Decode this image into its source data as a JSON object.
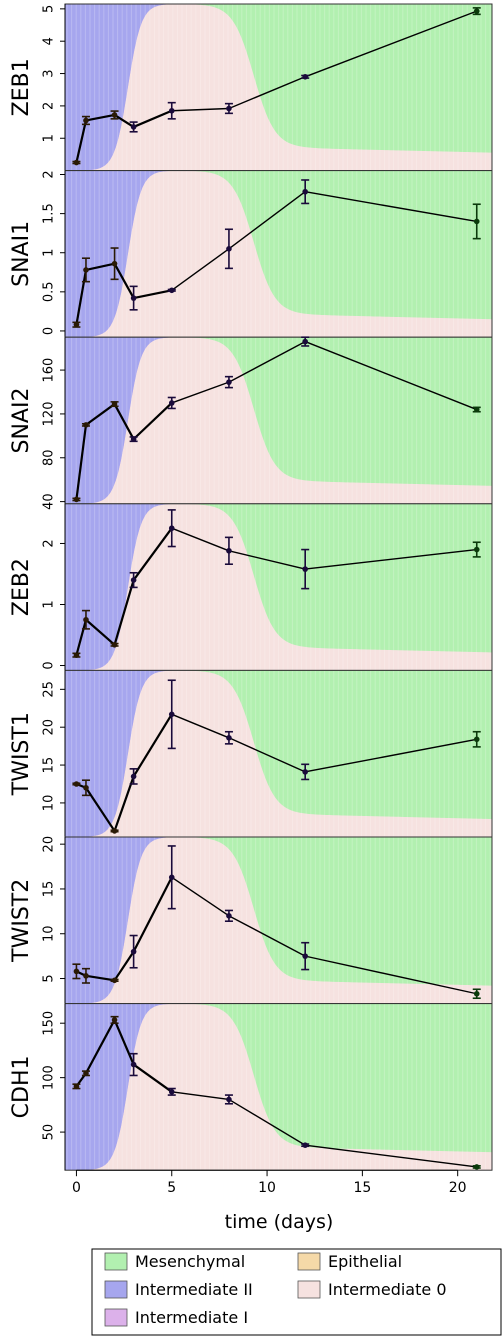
{
  "chart_data": {
    "type": "area",
    "xlabel": "time (days)",
    "xlim": [
      -0.6,
      21.8
    ],
    "xticks": [
      0,
      5,
      10,
      15,
      20
    ],
    "background": {
      "type": "stacked-area",
      "states": [
        {
          "name": "Epithelial",
          "color": "#F5D9A8"
        },
        {
          "name": "Intermediate 0",
          "color": "#F6E2E0"
        },
        {
          "name": "Intermediate I",
          "color": "#DCB1EA"
        },
        {
          "name": "Intermediate II",
          "color": "#A6A6EE"
        },
        {
          "name": "Mesenchymal",
          "color": "#B2F0B0"
        }
      ],
      "boundaries_x_at_half": [
        2.7,
        4.5,
        9.3
      ],
      "mesenchymal_start_fraction": 0.82,
      "mesenchymal_end_fraction": 0.86,
      "mesenchymal_plateau_start_x": 10.0
    },
    "panels": [
      {
        "name": "ZEB1",
        "ylim": [
          0,
          5.15
        ],
        "yticks": [
          1,
          2,
          3,
          4,
          5
        ],
        "x": [
          0,
          0.5,
          2,
          3,
          5,
          8,
          12,
          21
        ],
        "y": [
          0.25,
          1.55,
          1.72,
          1.35,
          1.85,
          1.92,
          2.9,
          4.93
        ],
        "err": [
          0.03,
          0.12,
          0.12,
          0.15,
          0.25,
          0.15,
          0.04,
          0.1
        ]
      },
      {
        "name": "SNAI1",
        "ylim": [
          -0.08,
          2.05
        ],
        "yticks": [
          0.0,
          0.5,
          1.0,
          1.5,
          2.0
        ],
        "x": [
          0,
          0.5,
          2,
          3,
          5,
          8,
          12,
          21
        ],
        "y": [
          0.08,
          0.78,
          0.86,
          0.42,
          0.52,
          1.05,
          1.78,
          1.4
        ],
        "err": [
          0.03,
          0.15,
          0.2,
          0.15,
          0.01,
          0.25,
          0.15,
          0.22
        ]
      },
      {
        "name": "SNAI2",
        "ylim": [
          38,
          190
        ],
        "yticks": [
          40,
          80,
          120,
          160
        ],
        "x": [
          0,
          0.5,
          2,
          3,
          5,
          8,
          12,
          21
        ],
        "y": [
          42,
          110,
          129,
          97,
          130,
          149,
          186,
          124
        ],
        "err": [
          1,
          1,
          2,
          2,
          5,
          5,
          4,
          2
        ]
      },
      {
        "name": "ZEB2",
        "ylim": [
          -0.08,
          2.65
        ],
        "yticks": [
          0,
          1,
          2
        ],
        "x": [
          0,
          0.5,
          2,
          3,
          5,
          8,
          12,
          21
        ],
        "y": [
          0.17,
          0.75,
          0.34,
          1.4,
          2.25,
          1.88,
          1.58,
          1.9
        ],
        "err": [
          0.03,
          0.15,
          0.02,
          0.12,
          0.3,
          0.22,
          0.32,
          0.12
        ]
      },
      {
        "name": "TWIST1",
        "ylim": [
          5.5,
          27.5
        ],
        "yticks": [
          10,
          15,
          20,
          25
        ],
        "x": [
          0,
          0.5,
          2,
          3,
          5,
          8,
          12,
          21
        ],
        "y": [
          12.5,
          12.0,
          6.3,
          13.5,
          21.7,
          18.6,
          14.1,
          18.4
        ],
        "err": [
          0.1,
          1.0,
          0.1,
          1.0,
          4.5,
          0.8,
          1.0,
          1.0
        ]
      },
      {
        "name": "TWIST2",
        "ylim": [
          2.2,
          20.8
        ],
        "yticks": [
          5,
          10,
          15,
          20
        ],
        "x": [
          0,
          0.5,
          2,
          3,
          5,
          8,
          12,
          21
        ],
        "y": [
          5.8,
          5.3,
          4.8,
          8.0,
          16.3,
          12.0,
          7.5,
          3.3
        ],
        "err": [
          0.8,
          0.8,
          0.1,
          1.8,
          3.5,
          0.6,
          1.5,
          0.5
        ]
      },
      {
        "name": "CDH1",
        "ylim": [
          15,
          168
        ],
        "yticks": [
          50,
          100,
          150
        ],
        "x": [
          0,
          0.5,
          2,
          3,
          5,
          8,
          12,
          21
        ],
        "y": [
          92,
          104,
          153,
          112,
          87,
          80,
          38,
          18
        ],
        "err": [
          2,
          2,
          3,
          10,
          3,
          4,
          1,
          1
        ]
      }
    ]
  },
  "legend": {
    "items": [
      {
        "label": "Mesenchymal",
        "color": "#B2F0B0"
      },
      {
        "label": "Epithelial",
        "color": "#F5D9A8"
      },
      {
        "label": "Intermediate II",
        "color": "#A6A6EE"
      },
      {
        "label": "Intermediate 0",
        "color": "#F6E2E0"
      },
      {
        "label": "Intermediate I",
        "color": "#DCB1EA"
      }
    ]
  },
  "line_colors": {
    "start": "#2a1a05",
    "mid": "#1a0a3a",
    "end": "#0b3a0b"
  }
}
